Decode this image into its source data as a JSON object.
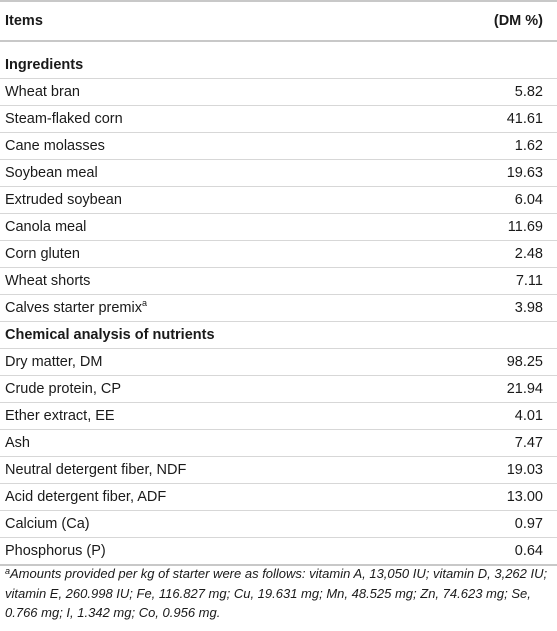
{
  "table": {
    "header": {
      "items": "Items",
      "value": "(DM %)"
    },
    "ingredients_heading": "Ingredients",
    "ingredients": [
      {
        "name": "Wheat bran",
        "value": "5.82"
      },
      {
        "name": "Steam-flaked corn",
        "value": "41.61"
      },
      {
        "name": "Cane molasses",
        "value": "1.62"
      },
      {
        "name": "Soybean meal",
        "value": "19.63"
      },
      {
        "name": "Extruded soybean",
        "value": "6.04"
      },
      {
        "name": "Canola meal",
        "value": "11.69"
      },
      {
        "name": "Corn gluten",
        "value": "2.48"
      },
      {
        "name": "Wheat shorts",
        "value": "7.11"
      },
      {
        "name": "Calves starter premix",
        "value": "3.98",
        "sup": "a"
      }
    ],
    "chemical_heading": "Chemical analysis of nutrients",
    "chemical": [
      {
        "name": "Dry matter, DM",
        "value": "98.25"
      },
      {
        "name": "Crude protein, CP",
        "value": "21.94"
      },
      {
        "name": "Ether extract, EE",
        "value": "4.01"
      },
      {
        "name": "Ash",
        "value": "7.47"
      },
      {
        "name": "Neutral detergent fiber, NDF",
        "value": "19.03"
      },
      {
        "name": "Acid detergent fiber, ADF",
        "value": "13.00"
      },
      {
        "name": "Calcium (Ca)",
        "value": "0.97"
      },
      {
        "name": "Phosphorus (P)",
        "value": "0.64"
      }
    ]
  },
  "footnote": {
    "marker": "a",
    "text": "Amounts provided per kg of starter were as follows: vitamin A, 13,050 IU; vitamin D, 3,262 IU; vitamin E, 260.998 IU; Fe, 116.827 mg; Cu, 19.631 mg; Mn, 48.525 mg; Zn, 74.623 mg; Se, 0.766 mg; I, 1.342 mg; Co, 0.956 mg."
  }
}
